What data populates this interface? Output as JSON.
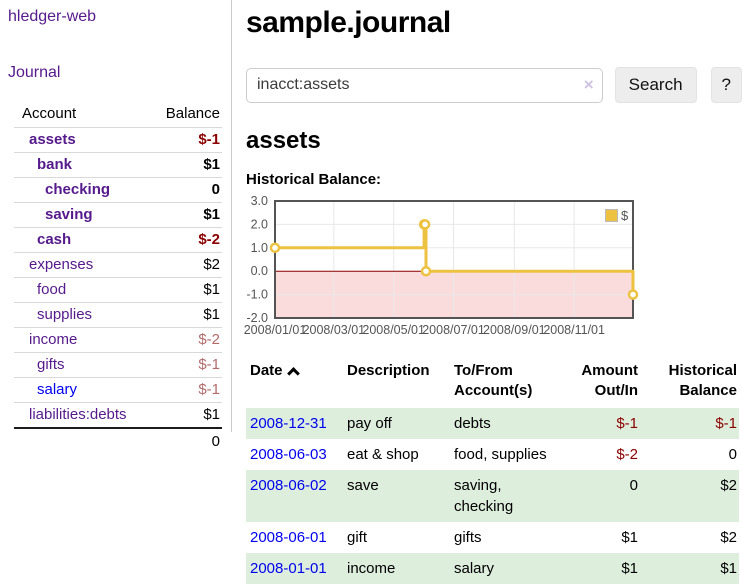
{
  "colors": {
    "link_visited": "#551A8B",
    "link_unvisited": "#0000EE",
    "negative_strong": "#8b0000",
    "negative_muted": "#b26b6b",
    "row_stripe_green": "#ddeedd",
    "series_yellow": "#edc240",
    "chart_border": "#545454"
  },
  "sidebar": {
    "app_title": "hledger-web",
    "nav_journal": "Journal",
    "accounts": {
      "header_account": "Account",
      "header_balance": "Balance",
      "rows": [
        {
          "name": "assets",
          "balance": "$-1"
        },
        {
          "name": "bank",
          "balance": "$1"
        },
        {
          "name": "checking",
          "balance": "0"
        },
        {
          "name": "saving",
          "balance": "$1"
        },
        {
          "name": "cash",
          "balance": "$-2"
        },
        {
          "name": "expenses",
          "balance": "$2"
        },
        {
          "name": "food",
          "balance": "$1"
        },
        {
          "name": "supplies",
          "balance": "$1"
        },
        {
          "name": "income",
          "balance": "$-2"
        },
        {
          "name": "gifts",
          "balance": "$-1"
        },
        {
          "name": "salary",
          "balance": "$-1"
        },
        {
          "name": "liabilities:debts",
          "balance": "$1"
        }
      ],
      "total": "0"
    }
  },
  "main": {
    "title": "sample.journal",
    "search": {
      "value": "inacct:assets",
      "clear_icon": "×",
      "button_label": "Search",
      "help_label": "?"
    },
    "section_title": "assets",
    "chart_label": "Historical Balance:",
    "table": {
      "headers": {
        "date": "Date",
        "description": "Description",
        "accounts": "To/From Account(s)",
        "amount": "Amount Out/In",
        "balance": "Historical Balance"
      },
      "rows": [
        {
          "date": "2008-12-31",
          "description": "pay off",
          "accounts": "debts",
          "amount": "$-1",
          "balance": "$-1"
        },
        {
          "date": "2008-06-03",
          "description": "eat & shop",
          "accounts": "food, supplies",
          "amount": "$-2",
          "balance": "0"
        },
        {
          "date": "2008-06-02",
          "description": "save",
          "accounts": "saving, checking",
          "amount": "0",
          "balance": "$2"
        },
        {
          "date": "2008-06-01",
          "description": "gift",
          "accounts": "gifts",
          "amount": "$1",
          "balance": "$2"
        },
        {
          "date": "2008-01-01",
          "description": "income",
          "accounts": "salary",
          "amount": "$1",
          "balance": "$1"
        }
      ]
    }
  },
  "chart_data": {
    "type": "line",
    "step": true,
    "title": "Historical Balance:",
    "series": [
      {
        "name": "$",
        "color": "#edc240",
        "points": [
          [
            "2008-01-01",
            1
          ],
          [
            "2008-06-01",
            2
          ],
          [
            "2008-06-02",
            2
          ],
          [
            "2008-06-03",
            0
          ],
          [
            "2008-12-31",
            -1
          ]
        ]
      }
    ],
    "xlim": [
      "2008-01-01",
      "2008-12-31"
    ],
    "ylim": [
      -2,
      3
    ],
    "yticks": [
      3,
      2,
      1,
      0,
      -1,
      -2
    ],
    "ytick_labels": [
      "3.0",
      "2.0",
      "1.0",
      "0.0",
      "-1.0",
      "-2.0"
    ],
    "xticks": [
      "2008-01-01",
      "2008-03-01",
      "2008-05-01",
      "2008-07-01",
      "2008-09-01",
      "2008-11-01"
    ],
    "xtick_labels": [
      "2008/01/01",
      "2008/03/01",
      "2008/05/01",
      "2008/07/01",
      "2008/09/01",
      "2008/11/01"
    ],
    "legend_position": "top-right",
    "grid": true,
    "negative_region_color": "#fbdcdc",
    "zero_line_color": "#8b0000"
  }
}
